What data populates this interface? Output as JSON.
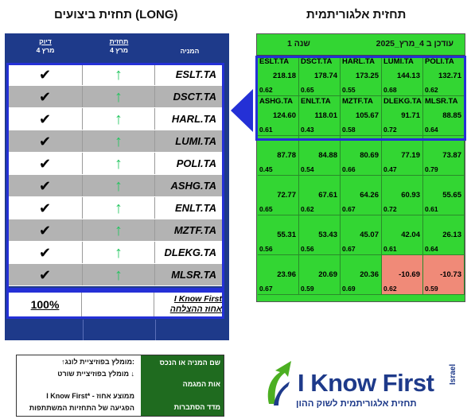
{
  "titles": {
    "left": "תחזית ביצועים (LONG)",
    "right": "תחזית אלגוריתמית"
  },
  "performance": {
    "headers": {
      "company": "המניה",
      "forecast": "תחזית",
      "forecast_date": "4 מרץ",
      "accuracy": "דיוק",
      "accuracy_date": "4 מרץ"
    },
    "rows": [
      {
        "ticker": "ESLT.TA",
        "forecast": "↑",
        "result": "✔"
      },
      {
        "ticker": "DSCT.TA",
        "forecast": "↑",
        "result": "✔"
      },
      {
        "ticker": "HARL.TA",
        "forecast": "↑",
        "result": "✔"
      },
      {
        "ticker": "LUMI.TA",
        "forecast": "↑",
        "result": "✔"
      },
      {
        "ticker": "POLI.TA",
        "forecast": "↑",
        "result": "✔"
      },
      {
        "ticker": "ASHG.TA",
        "forecast": "↑",
        "result": "✔"
      },
      {
        "ticker": "ENLT.TA",
        "forecast": "↑",
        "result": "✔"
      },
      {
        "ticker": "MZTF.TA",
        "forecast": "↑",
        "result": "✔"
      },
      {
        "ticker": "DLEKG.TA",
        "forecast": "↑",
        "result": "✔"
      },
      {
        "ticker": "MLSR.TA",
        "forecast": "↑",
        "result": "✔"
      }
    ],
    "summary": {
      "percent": "100%",
      "label_line1": "I Know First",
      "label_line2": "אחוז ההצלחה"
    }
  },
  "algo": {
    "updated": "עודכן ב 4_מרץ_2025",
    "period": "1 שנה",
    "cells": [
      {
        "ticker": "ESLT.TA",
        "value": "218.18",
        "acc": "0.62"
      },
      {
        "ticker": "DSCT.TA",
        "value": "178.74",
        "acc": "0.65"
      },
      {
        "ticker": "HARL.TA",
        "value": "173.25",
        "acc": "0.55"
      },
      {
        "ticker": "LUMI.TA",
        "value": "144.13",
        "acc": "0.68"
      },
      {
        "ticker": "POLI.TA",
        "value": "132.71",
        "acc": "0.62"
      },
      {
        "ticker": "ASHG.TA",
        "value": "124.60",
        "acc": "0.61"
      },
      {
        "ticker": "ENLT.TA",
        "value": "118.01",
        "acc": "0.43"
      },
      {
        "ticker": "MZTF.TA",
        "value": "105.67",
        "acc": "0.58"
      },
      {
        "ticker": "DLEKG.TA",
        "value": "91.71",
        "acc": "0.72"
      },
      {
        "ticker": "MLSR.TA",
        "value": "88.85",
        "acc": "0.64"
      },
      {
        "ticker": "",
        "value": "87.78",
        "acc": "0.45"
      },
      {
        "ticker": "",
        "value": "84.88",
        "acc": "0.54"
      },
      {
        "ticker": "",
        "value": "80.69",
        "acc": "0.66"
      },
      {
        "ticker": "",
        "value": "77.19",
        "acc": "0.47"
      },
      {
        "ticker": "",
        "value": "73.87",
        "acc": "0.79"
      },
      {
        "ticker": "",
        "value": "72.77",
        "acc": "0.65"
      },
      {
        "ticker": "",
        "value": "67.61",
        "acc": "0.62"
      },
      {
        "ticker": "",
        "value": "64.26",
        "acc": "0.67"
      },
      {
        "ticker": "",
        "value": "60.93",
        "acc": "0.72"
      },
      {
        "ticker": "",
        "value": "55.65",
        "acc": "0.61"
      },
      {
        "ticker": "",
        "value": "55.31",
        "acc": "0.56"
      },
      {
        "ticker": "",
        "value": "53.43",
        "acc": "0.56"
      },
      {
        "ticker": "",
        "value": "45.07",
        "acc": "0.67"
      },
      {
        "ticker": "",
        "value": "42.04",
        "acc": "0.61"
      },
      {
        "ticker": "",
        "value": "26.13",
        "acc": "0.64"
      },
      {
        "ticker": "",
        "value": "23.96",
        "acc": "0.67"
      },
      {
        "ticker": "",
        "value": "20.69",
        "acc": "0.59"
      },
      {
        "ticker": "",
        "value": "20.36",
        "acc": "0.69"
      },
      {
        "ticker": "",
        "value": "-10.69",
        "acc": "0.62",
        "negative": true
      },
      {
        "ticker": "",
        "value": "-10.73",
        "acc": "0.59",
        "negative": true
      }
    ]
  },
  "legend": {
    "green_line1": "שם המניה או הנכס",
    "green_line2": "אות המגמה",
    "green_line3": "מדד הסתברות",
    "long": "↑מומלץ בפוזיציית לונג:",
    "short": "מומלץ בפוזיציית שורט ↓",
    "note1": "I Know First* - ממוצע אחוז",
    "note2": "הפגיעה של התחזיות המשתתפות"
  },
  "logo": {
    "brand": "I Know First",
    "country": "Israel",
    "tagline": "תחזית אלגוריתמית לשוק ההון"
  },
  "colors": {
    "navy": "#1e3a8a",
    "frame_blue": "#2430d6",
    "grid_green": "#33d633",
    "negative_red": "#f08a78",
    "legend_green": "#1f6b1f"
  }
}
